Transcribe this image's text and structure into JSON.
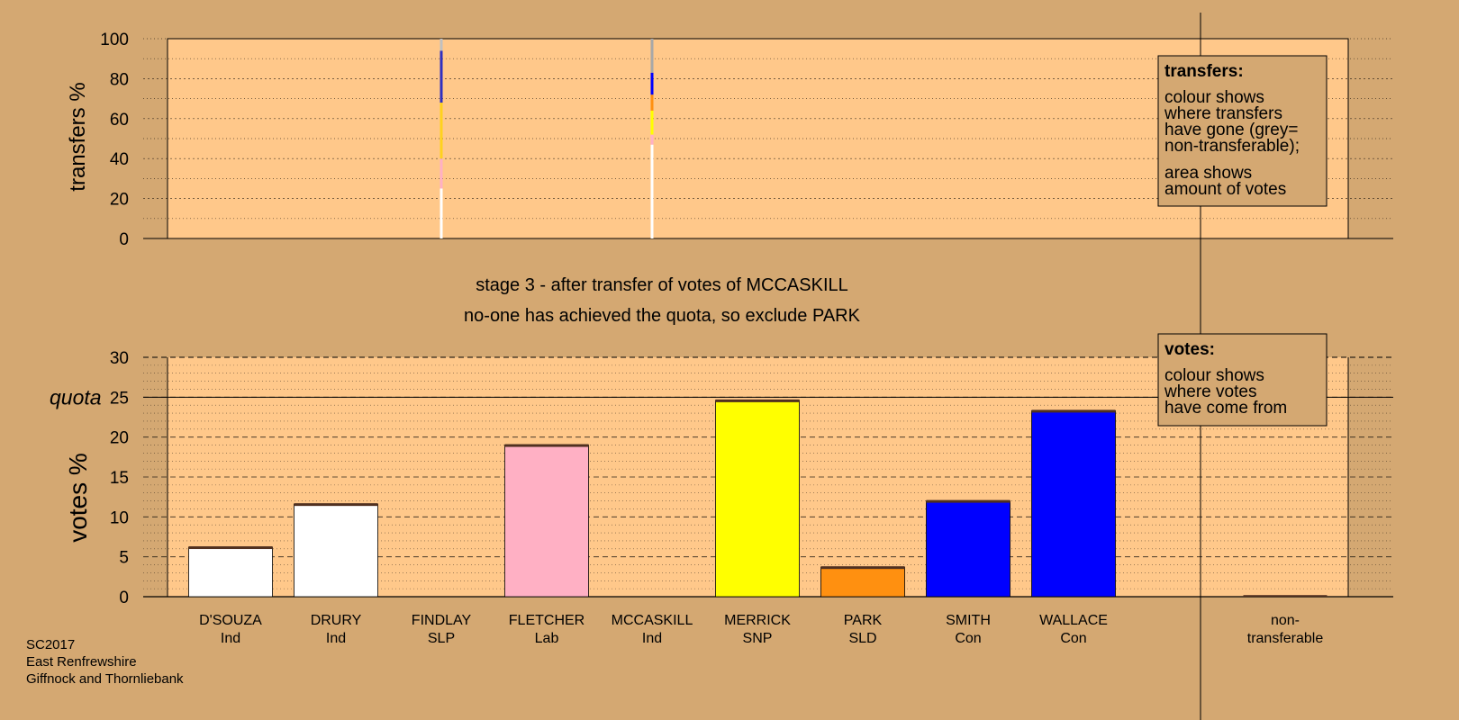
{
  "chart_data": {
    "type": "bar",
    "title": "stage 3 - after transfer of votes of MCCASKILL",
    "subtitle": "no-one has achieved the quota, so exclude PARK",
    "candidates": [
      {
        "name": "D'SOUZA",
        "party": "Ind"
      },
      {
        "name": "DRURY",
        "party": "Ind"
      },
      {
        "name": "FINDLAY",
        "party": "SLP"
      },
      {
        "name": "FLETCHER",
        "party": "Lab"
      },
      {
        "name": "MCCASKILL",
        "party": "Ind"
      },
      {
        "name": "MERRICK",
        "party": "SNP"
      },
      {
        "name": "PARK",
        "party": "SLD"
      },
      {
        "name": "SMITH",
        "party": "Con"
      },
      {
        "name": "WALLACE",
        "party": "Con"
      }
    ],
    "nontransferable_label": [
      "non-",
      "transferable"
    ],
    "transfers": {
      "ylabel": "transfers %",
      "yticks": [
        0,
        20,
        40,
        60,
        80,
        100
      ],
      "ylim": [
        0,
        100
      ],
      "columns": [
        {
          "candidate": "FINDLAY",
          "segments": [
            {
              "from": 0,
              "to": 25,
              "color": "#FFFFFF"
            },
            {
              "from": 25,
              "to": 40,
              "color": "#FFB0C4"
            },
            {
              "from": 40,
              "to": 68,
              "color": "#FFD21E"
            },
            {
              "from": 68,
              "to": 94,
              "color": "#3030C0"
            },
            {
              "from": 94,
              "to": 100,
              "color": "#C0C0C0"
            }
          ]
        },
        {
          "candidate": "MCCASKILL",
          "segments": [
            {
              "from": 0,
              "to": 47,
              "color": "#FFFFFF"
            },
            {
              "from": 47,
              "to": 52,
              "color": "#FFB0C4"
            },
            {
              "from": 52,
              "to": 64,
              "color": "#FFFF00"
            },
            {
              "from": 64,
              "to": 72,
              "color": "#FF9010"
            },
            {
              "from": 72,
              "to": 83,
              "color": "#0000FF"
            },
            {
              "from": 83,
              "to": 100,
              "color": "#A8A8A8"
            }
          ]
        }
      ]
    },
    "votes": {
      "ylabel": "votes %",
      "yticks": [
        0,
        5,
        10,
        15,
        20,
        25,
        30
      ],
      "ylim": [
        0,
        30
      ],
      "quota": 25,
      "quota_label": "quota",
      "bars": [
        {
          "candidate": "D'SOUZA",
          "value": 6.2,
          "color": "#FFFFFF"
        },
        {
          "candidate": "DRURY",
          "value": 11.6,
          "color": "#FFFFFF"
        },
        {
          "candidate": "FINDLAY",
          "value": 0,
          "color": "#FFFFFF"
        },
        {
          "candidate": "FLETCHER",
          "value": 19.0,
          "color": "#FFB0C4"
        },
        {
          "candidate": "MCCASKILL",
          "value": 0,
          "color": "#FFFFFF"
        },
        {
          "candidate": "MERRICK",
          "value": 24.6,
          "color": "#FFFF00"
        },
        {
          "candidate": "PARK",
          "value": 3.7,
          "color": "#FF9010"
        },
        {
          "candidate": "SMITH",
          "value": 12.0,
          "color": "#0000FF"
        },
        {
          "candidate": "WALLACE",
          "value": 23.3,
          "color": "#0000FF"
        }
      ],
      "nontransferable": 0.2
    },
    "legend_transfers": {
      "title": "transfers:",
      "lines1": [
        "colour shows",
        "where transfers",
        "have gone (grey=",
        "non-transferable);"
      ],
      "lines2": [
        "area shows",
        "amount of votes"
      ]
    },
    "legend_votes": {
      "title": "votes:",
      "lines": [
        "colour shows",
        "where votes",
        "have come from"
      ]
    }
  },
  "footer": [
    "SC2017",
    "East Renfrewshire",
    "Giffnock and Thornliebank"
  ],
  "colors": {
    "background": "#D4A872",
    "plot": "#FFC88A",
    "plot_outer": "#D4A872"
  }
}
